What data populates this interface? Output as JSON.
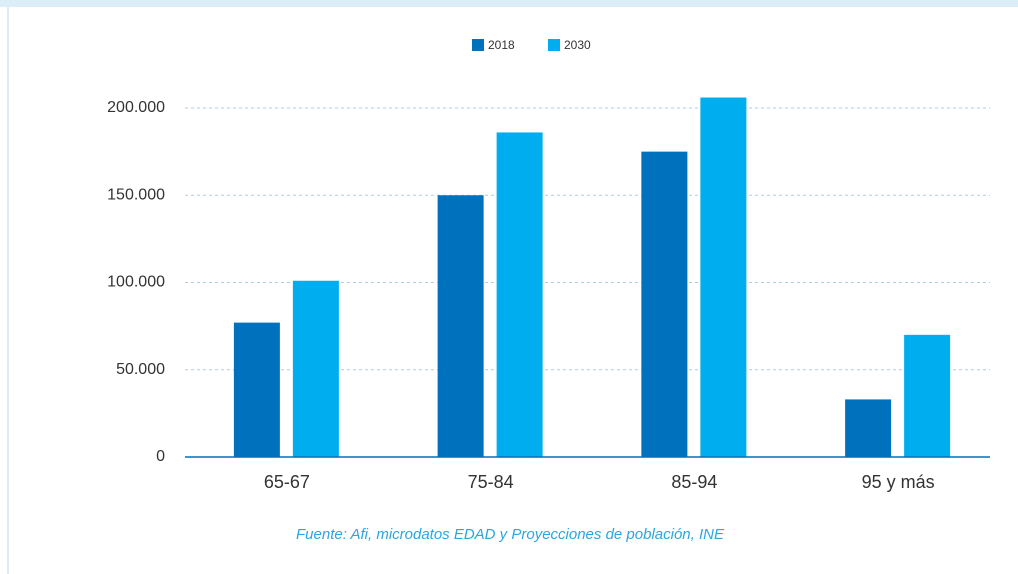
{
  "chart_data": {
    "type": "bar",
    "categories": [
      "65-67",
      "75-84",
      "85-94",
      "95 y más"
    ],
    "series": [
      {
        "name": "2018",
        "color": "#0071bc",
        "values": [
          77000,
          150000,
          175000,
          33000
        ]
      },
      {
        "name": "2030",
        "color": "#00adee",
        "values": [
          101000,
          186000,
          206000,
          70000
        ]
      }
    ],
    "ylim": [
      0,
      200000
    ],
    "yticks": [
      0,
      {
        "value": 50000,
        "label": "50.000"
      },
      {
        "value": 100000,
        "label": "100.000"
      },
      {
        "value": 150000,
        "label": "150.000"
      },
      {
        "value": 200000,
        "label": "200.000"
      }
    ],
    "grid": true,
    "legend": "top",
    "source": "Fuente: Afi, microdatos EDAD y Proyecciones de población, INE"
  }
}
